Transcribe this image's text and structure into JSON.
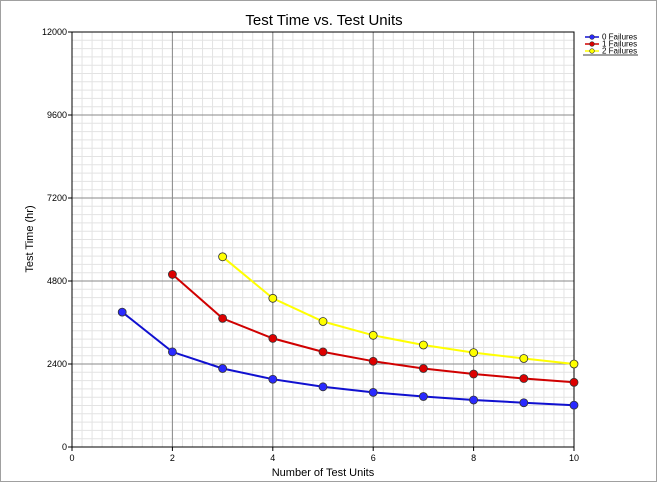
{
  "chart_data": {
    "type": "line",
    "title": "Test Time vs. Test Units",
    "xlabel": "Number of Test Units",
    "ylabel": "Test Time  (hr)",
    "xlim": [
      0,
      10
    ],
    "ylim": [
      0,
      12000
    ],
    "x_ticks": [
      0,
      2,
      4,
      6,
      8,
      10
    ],
    "y_ticks": [
      0,
      2400,
      4800,
      7200,
      9600,
      12000
    ],
    "grid": true,
    "legend_position": "top-right",
    "series": [
      {
        "name": "0 Failures",
        "color": "#1010d0",
        "marker_fill": "#2a2aff",
        "x": [
          1,
          2,
          3,
          4,
          5,
          6,
          7,
          8,
          9,
          10
        ],
        "values": [
          3900,
          2750,
          2270,
          1960,
          1740,
          1580,
          1460,
          1360,
          1280,
          1210
        ]
      },
      {
        "name": "1 Failures",
        "color": "#d00000",
        "marker_fill": "#dd0000",
        "x": [
          2,
          3,
          4,
          5,
          6,
          7,
          8,
          9,
          10
        ],
        "values": [
          4990,
          3720,
          3140,
          2750,
          2480,
          2270,
          2110,
          1980,
          1870
        ]
      },
      {
        "name": "2 Failures",
        "color": "#ffff00",
        "marker_fill": "#ffff00",
        "x": [
          3,
          4,
          5,
          6,
          7,
          8,
          9,
          10
        ],
        "values": [
          5500,
          4300,
          3630,
          3230,
          2950,
          2730,
          2560,
          2400
        ]
      }
    ]
  }
}
